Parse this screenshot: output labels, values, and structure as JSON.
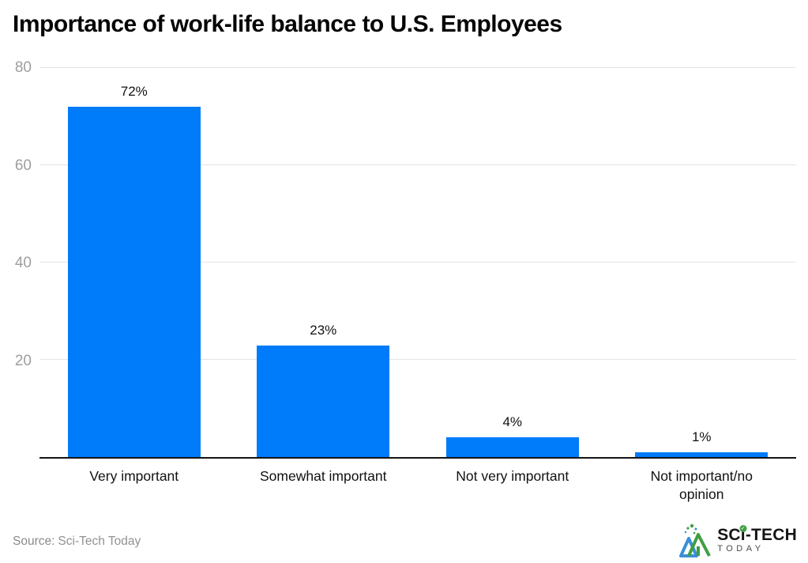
{
  "source": {
    "label": "Source:",
    "name": "Sci-Tech Today"
  },
  "logo": {
    "brand_part1": "SC",
    "brand_part2": "i",
    "brand_part3": "-TECH",
    "brand_sub": "TODAY",
    "check_glyph": "✓",
    "colors": {
      "blue": "#3b8fd8",
      "green": "#3f9e43",
      "dark": "#151515"
    }
  },
  "chart_data": {
    "type": "bar",
    "title": "Importance of work-life balance to U.S. Employees",
    "categories": [
      "Very important",
      "Somewhat important",
      "Not very important",
      "Not important/no opinion"
    ],
    "values": [
      72,
      23,
      4,
      1
    ],
    "value_labels": [
      "72%",
      "23%",
      "4%",
      "1%"
    ],
    "xlabel": "",
    "ylabel": "",
    "ylim": [
      0,
      80
    ],
    "yticks": [
      20,
      40,
      60,
      80
    ],
    "grid": "horizontal",
    "legend": "none",
    "bar_color": "#007BFA"
  }
}
